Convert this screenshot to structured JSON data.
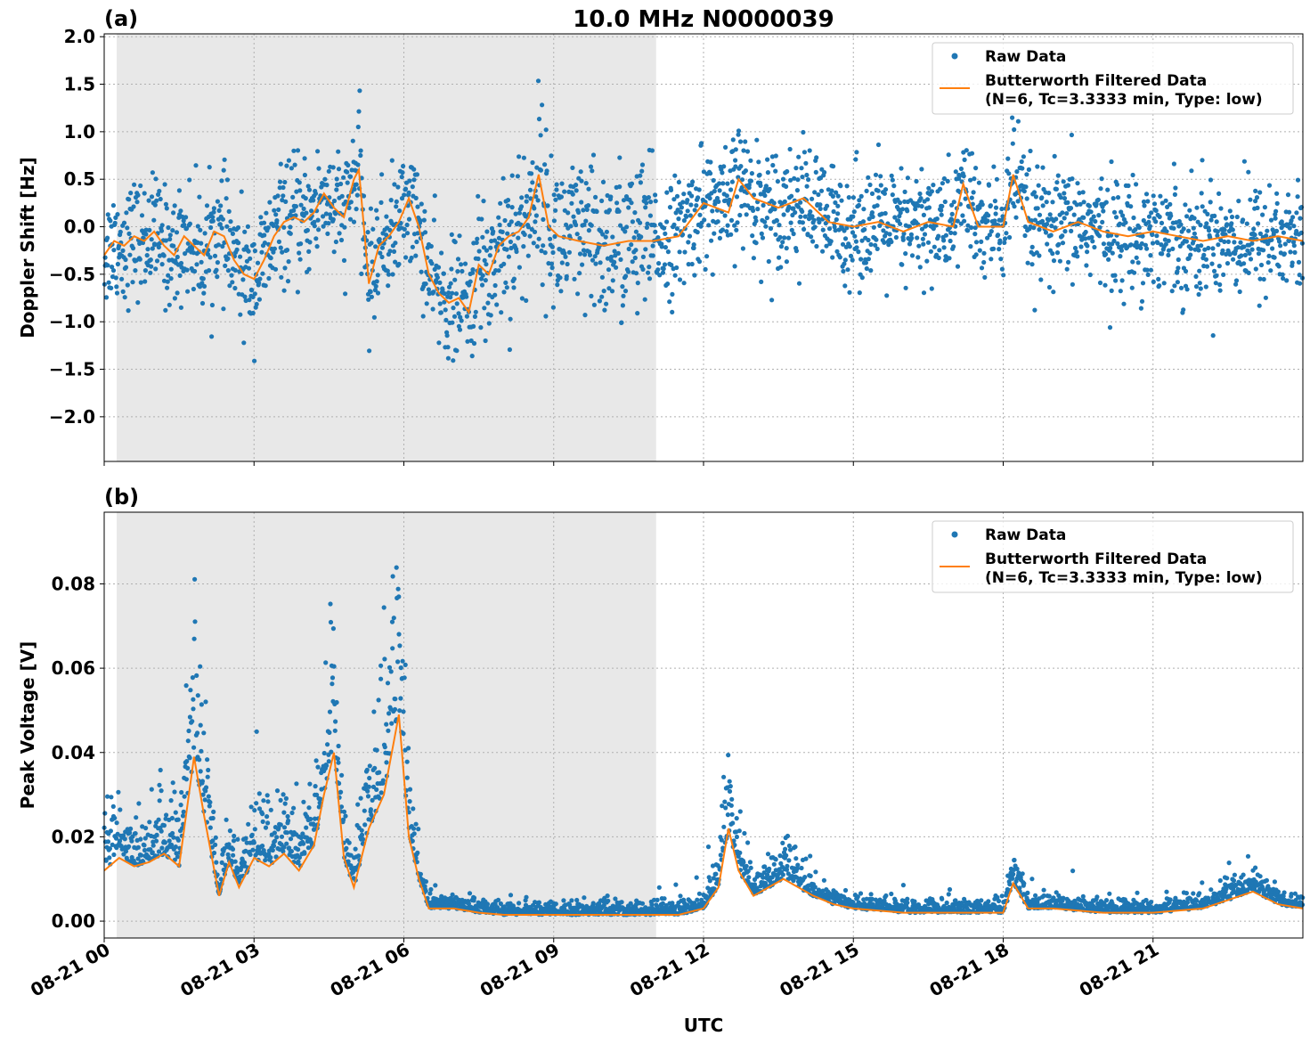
{
  "figure": {
    "title": "10.0 MHz N0000039",
    "xlabel": "UTC"
  },
  "colors": {
    "raw": "#1f77b4",
    "filtered": "#ff7f0e",
    "shade": "#e8e8e8"
  },
  "chart_data": [
    {
      "type": "scatter",
      "panel_label": "(a)",
      "title": "10.0 MHz N0000039",
      "ylabel": "Doppler Shift [Hz]",
      "xlabel": "",
      "xlim_hours": [
        0,
        24
      ],
      "ylim": [
        -2.47,
        2.03
      ],
      "yticks": [
        2.0,
        1.5,
        1.0,
        0.5,
        0.0,
        -0.5,
        -1.0,
        -1.5,
        -2.0
      ],
      "ytick_labels": [
        "2.0",
        "1.5",
        "1.0",
        "0.5",
        "0.0",
        "−0.5",
        "−1.0",
        "−1.5",
        "−2.0"
      ],
      "grid": true,
      "shaded_span_hours": [
        0.25,
        11.05
      ],
      "legend": {
        "position": "top-right",
        "entries": [
          "Raw Data",
          "Butterworth Filtered Data",
          "(N=6, Tc=3.3333 min, Type: low)"
        ]
      },
      "series": [
        {
          "name": "Butterworth Filtered Data",
          "x_hours": [
            0.0,
            0.2,
            0.4,
            0.6,
            0.8,
            1.0,
            1.2,
            1.4,
            1.6,
            1.8,
            2.0,
            2.2,
            2.4,
            2.6,
            2.8,
            3.0,
            3.2,
            3.4,
            3.6,
            3.8,
            4.0,
            4.2,
            4.4,
            4.6,
            4.8,
            5.0,
            5.1,
            5.3,
            5.5,
            5.7,
            5.9,
            6.1,
            6.3,
            6.5,
            6.7,
            6.9,
            7.1,
            7.3,
            7.5,
            7.7,
            7.9,
            8.1,
            8.3,
            8.5,
            8.7,
            8.9,
            9.1,
            9.5,
            10.0,
            10.5,
            11.0,
            11.5,
            12.0,
            12.5,
            12.7,
            13.0,
            13.5,
            14.0,
            14.5,
            15.0,
            15.5,
            16.0,
            16.5,
            17.0,
            17.2,
            17.5,
            18.0,
            18.2,
            18.5,
            19.0,
            19.5,
            20.0,
            20.5,
            21.0,
            21.5,
            22.0,
            22.5,
            23.0,
            23.5,
            24.0
          ],
          "y": [
            -0.3,
            -0.15,
            -0.2,
            -0.1,
            -0.15,
            -0.05,
            -0.2,
            -0.3,
            -0.1,
            -0.2,
            -0.3,
            -0.05,
            -0.1,
            -0.35,
            -0.5,
            -0.55,
            -0.35,
            -0.1,
            0.05,
            0.1,
            0.05,
            0.15,
            0.35,
            0.2,
            0.1,
            0.5,
            0.6,
            -0.6,
            -0.2,
            -0.1,
            0.05,
            0.3,
            0.0,
            -0.5,
            -0.7,
            -0.8,
            -0.75,
            -0.9,
            -0.4,
            -0.5,
            -0.2,
            -0.1,
            -0.05,
            0.1,
            0.55,
            0.0,
            -0.1,
            -0.15,
            -0.2,
            -0.15,
            -0.15,
            -0.1,
            0.25,
            0.15,
            0.5,
            0.3,
            0.2,
            0.3,
            0.05,
            0.0,
            0.05,
            -0.05,
            0.05,
            0.0,
            0.45,
            0.0,
            0.0,
            0.55,
            0.05,
            -0.05,
            0.05,
            -0.05,
            -0.1,
            -0.05,
            -0.1,
            -0.15,
            -0.1,
            -0.15,
            -0.1,
            -0.15
          ]
        },
        {
          "name": "Raw Data",
          "spread_around_filtered": 0.3
        }
      ]
    },
    {
      "type": "scatter",
      "panel_label": "(b)",
      "ylabel": "Peak Voltage [V]",
      "xlabel": "UTC",
      "xlim_hours": [
        0,
        24
      ],
      "ylim": [
        -0.004,
        0.097
      ],
      "yticks": [
        0.0,
        0.02,
        0.04,
        0.06,
        0.08
      ],
      "ytick_labels": [
        "0.00",
        "0.02",
        "0.04",
        "0.06",
        "0.08"
      ],
      "xtick_hours": [
        0,
        3,
        6,
        9,
        12,
        15,
        18,
        21
      ],
      "xtick_labels": [
        "08-21 00",
        "08-21 03",
        "08-21 06",
        "08-21 09",
        "08-21 12",
        "08-21 15",
        "08-21 18",
        "08-21 21"
      ],
      "grid": true,
      "shaded_span_hours": [
        0.25,
        11.05
      ],
      "legend": {
        "position": "top-right",
        "entries": [
          "Raw Data",
          "Butterworth Filtered Data",
          "(N=6, Tc=3.3333 min, Type: low)"
        ]
      },
      "series": [
        {
          "name": "Butterworth Filtered Data",
          "x_hours": [
            0.0,
            0.3,
            0.6,
            0.9,
            1.2,
            1.5,
            1.8,
            2.0,
            2.3,
            2.5,
            2.7,
            3.0,
            3.3,
            3.6,
            3.9,
            4.2,
            4.4,
            4.6,
            4.8,
            5.0,
            5.3,
            5.6,
            5.9,
            6.1,
            6.3,
            6.5,
            7.0,
            7.5,
            8.0,
            9.0,
            10.0,
            11.0,
            11.5,
            12.0,
            12.3,
            12.5,
            12.7,
            13.0,
            13.3,
            13.6,
            13.9,
            14.2,
            14.6,
            15.0,
            16.0,
            17.0,
            18.0,
            18.2,
            18.5,
            19.0,
            20.0,
            21.0,
            22.0,
            22.5,
            23.0,
            23.5,
            24.0
          ],
          "y": [
            0.012,
            0.015,
            0.013,
            0.014,
            0.016,
            0.013,
            0.039,
            0.025,
            0.006,
            0.014,
            0.008,
            0.015,
            0.013,
            0.016,
            0.012,
            0.018,
            0.03,
            0.04,
            0.015,
            0.008,
            0.022,
            0.03,
            0.049,
            0.02,
            0.01,
            0.003,
            0.003,
            0.002,
            0.0015,
            0.0015,
            0.0015,
            0.0015,
            0.0015,
            0.003,
            0.008,
            0.022,
            0.012,
            0.006,
            0.008,
            0.01,
            0.008,
            0.006,
            0.004,
            0.003,
            0.002,
            0.002,
            0.002,
            0.009,
            0.003,
            0.003,
            0.002,
            0.002,
            0.003,
            0.005,
            0.007,
            0.004,
            0.003
          ]
        },
        {
          "name": "Raw Data",
          "spread_around_filtered": 0.006
        }
      ]
    }
  ]
}
